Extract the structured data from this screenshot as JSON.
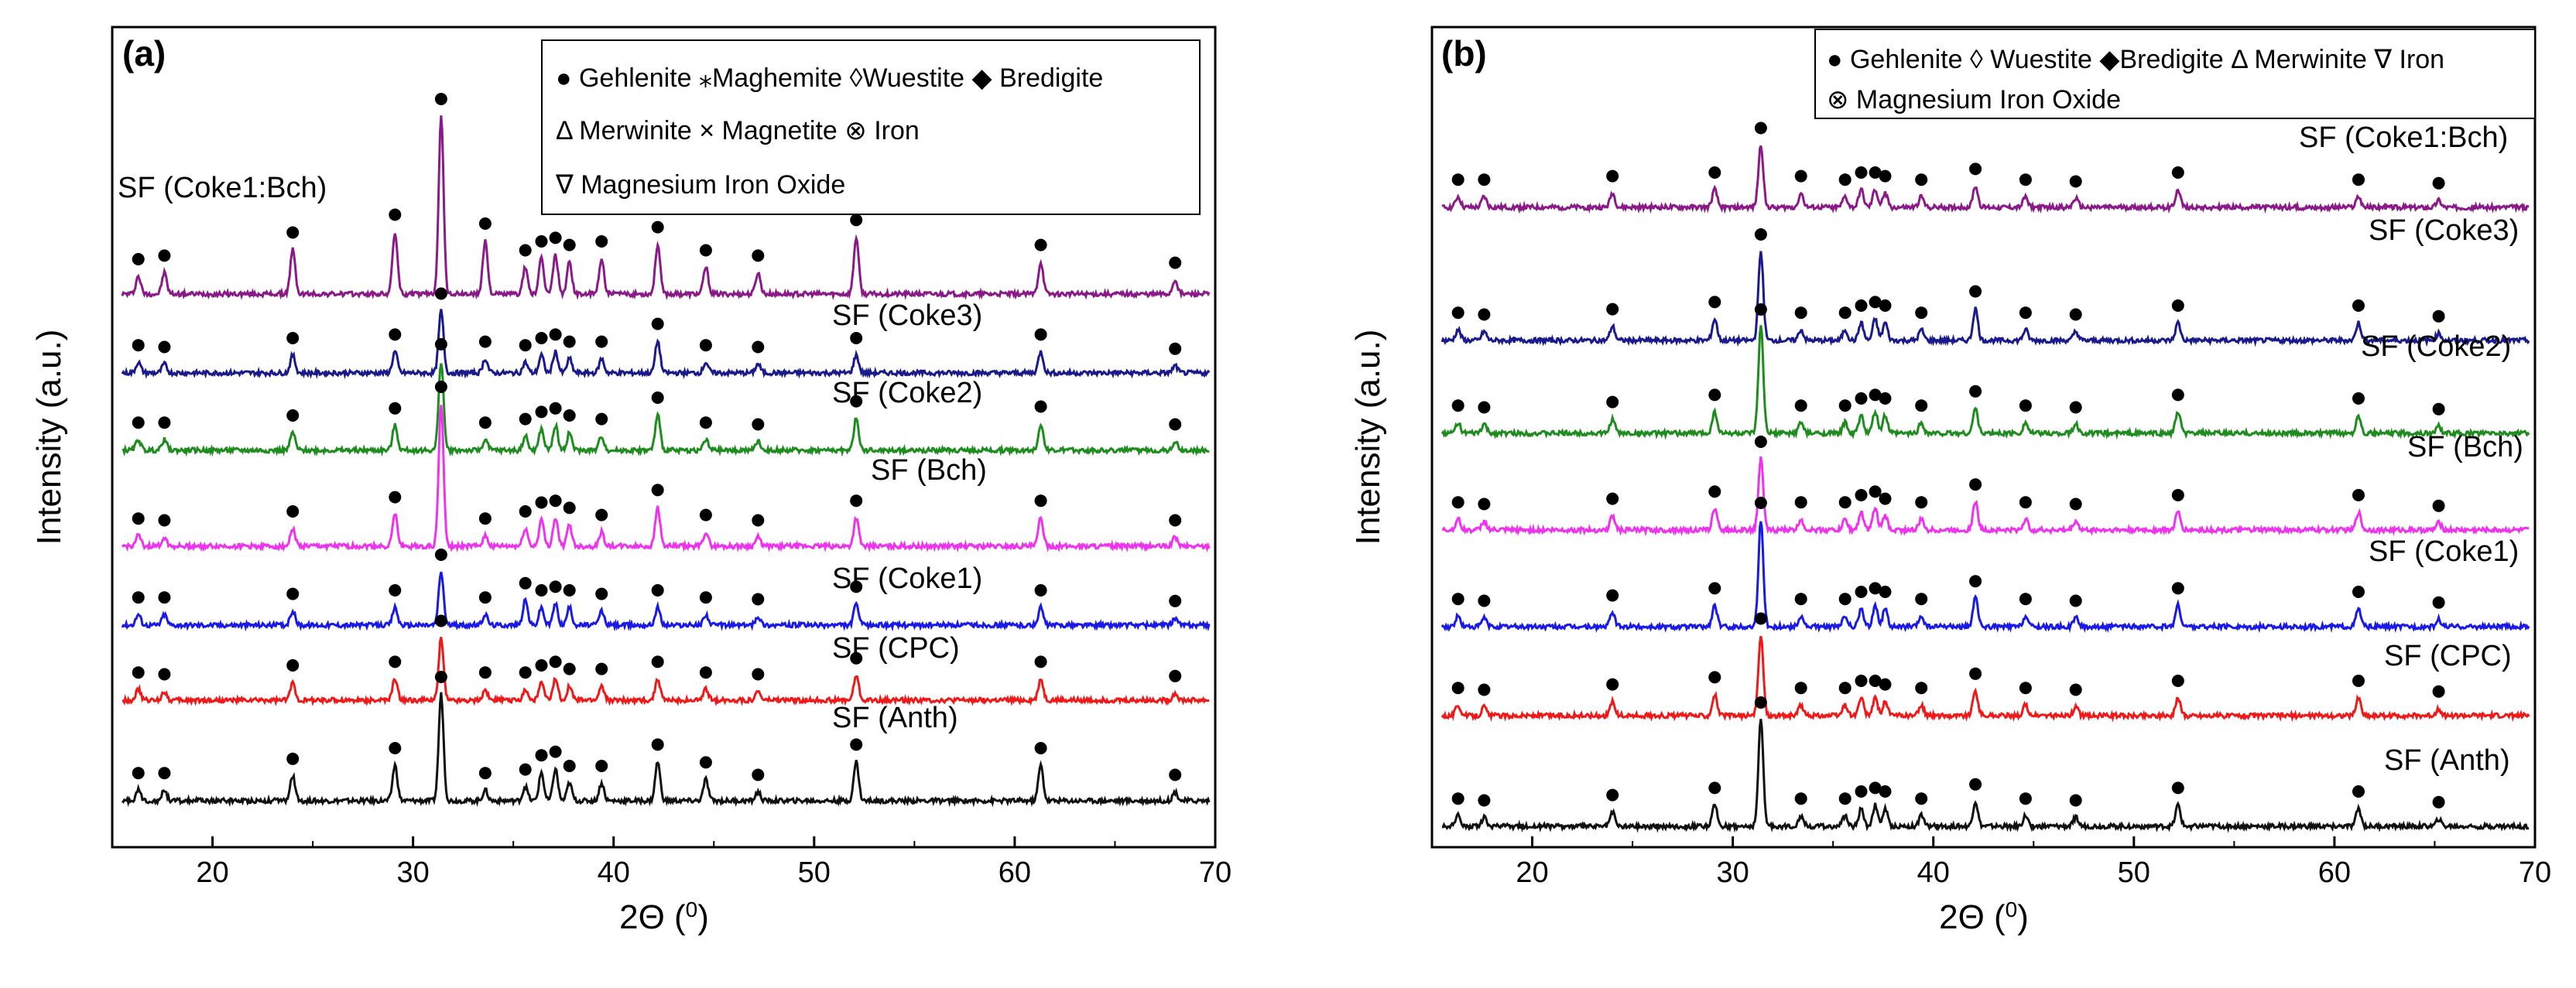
{
  "chart_data": [
    {
      "type": "line",
      "panel": "(a)",
      "xlabel": "2Θ (0)",
      "xlabel_main": "2Θ (",
      "xlabel_sup": "0",
      "xlabel_end": ")",
      "ylabel": "Intensity (a.u.)",
      "xlim": [
        15,
        70
      ],
      "xticks": [
        "20",
        "30",
        "40",
        "50",
        "60",
        "70"
      ],
      "xtick_values": [
        20,
        30,
        40,
        50,
        60,
        70
      ],
      "grid": false,
      "legend_position": "top-right",
      "legend_lines": [
        "● Gehlenite ⁎Maghemite ◊Wuestite ◆ Bredigite",
        "Δ Merwinite × Magnetite ⊗ Iron",
        "∇ Magnesium Iron Oxide"
      ],
      "main_peaks_2theta": [
        16.3,
        17.6,
        24.0,
        29.1,
        31.4,
        33.6,
        35.6,
        36.4,
        37.1,
        37.8,
        39.4,
        42.2,
        44.6,
        47.2,
        52.1,
        61.3,
        68.0
      ],
      "series": [
        {
          "name": "SF (Coke1:Bch)",
          "color": "#8B1A89",
          "peak_heights": [
            0.1,
            0.12,
            0.25,
            0.35,
            1.0,
            0.3,
            0.15,
            0.2,
            0.22,
            0.18,
            0.2,
            0.28,
            0.15,
            0.12,
            0.32,
            0.18,
            0.08
          ]
        },
        {
          "name": "SF (Coke3)",
          "color": "#1A1A8C",
          "peak_heights": [
            0.06,
            0.05,
            0.1,
            0.12,
            0.35,
            0.08,
            0.06,
            0.1,
            0.12,
            0.08,
            0.08,
            0.18,
            0.06,
            0.05,
            0.1,
            0.12,
            0.04
          ]
        },
        {
          "name": "SF (Coke2)",
          "color": "#1E8C1E",
          "peak_heights": [
            0.06,
            0.06,
            0.1,
            0.14,
            0.5,
            0.06,
            0.08,
            0.12,
            0.14,
            0.1,
            0.08,
            0.2,
            0.06,
            0.05,
            0.18,
            0.15,
            0.05
          ]
        },
        {
          "name": "SF (Bch)",
          "color": "#EE33EE",
          "peak_heights": [
            0.06,
            0.05,
            0.1,
            0.18,
            0.8,
            0.06,
            0.1,
            0.15,
            0.16,
            0.12,
            0.08,
            0.22,
            0.08,
            0.05,
            0.16,
            0.16,
            0.05
          ]
        },
        {
          "name": "SF (Coke1)",
          "color": "#1A1AE6",
          "peak_heights": [
            0.06,
            0.06,
            0.08,
            0.1,
            0.3,
            0.06,
            0.14,
            0.1,
            0.12,
            0.1,
            0.08,
            0.1,
            0.06,
            0.05,
            0.12,
            0.1,
            0.04
          ]
        },
        {
          "name": "SF (CPC)",
          "color": "#EE1A1A",
          "peak_heights": [
            0.06,
            0.05,
            0.1,
            0.12,
            0.35,
            0.06,
            0.06,
            0.1,
            0.12,
            0.08,
            0.08,
            0.12,
            0.06,
            0.05,
            0.14,
            0.12,
            0.04
          ]
        },
        {
          "name": "SF (Anth)",
          "color": "#111111",
          "peak_heights": [
            0.06,
            0.06,
            0.14,
            0.2,
            0.6,
            0.06,
            0.08,
            0.16,
            0.18,
            0.1,
            0.1,
            0.22,
            0.12,
            0.05,
            0.22,
            0.2,
            0.05
          ]
        }
      ]
    },
    {
      "type": "line",
      "panel": "(b)",
      "xlabel": "2Θ (0)",
      "xlabel_main": "2Θ (",
      "xlabel_sup": "0",
      "xlabel_end": ")",
      "ylabel": "Intensity (a.u.)",
      "xlim": [
        15,
        70
      ],
      "xticks": [
        "20",
        "30",
        "40",
        "50",
        "60",
        "70"
      ],
      "xtick_values": [
        20,
        30,
        40,
        50,
        60,
        70
      ],
      "grid": false,
      "legend_position": "top-right",
      "legend_lines": [
        "● Gehlenite ◊ Wuestite ◆Bredigite Δ Merwinite ∇ Iron",
        "⊗ Magnesium Iron Oxide"
      ],
      "main_peaks_2theta": [
        16.3,
        17.6,
        24.0,
        29.1,
        31.4,
        33.4,
        35.6,
        36.4,
        37.1,
        37.6,
        39.4,
        42.1,
        44.6,
        47.1,
        52.2,
        61.2,
        65.2
      ],
      "series": [
        {
          "name": "SF (Coke1:Bch)",
          "color": "#8B1A89",
          "peak_heights": [
            0.06,
            0.06,
            0.08,
            0.1,
            0.35,
            0.08,
            0.06,
            0.1,
            0.1,
            0.08,
            0.06,
            0.12,
            0.06,
            0.05,
            0.1,
            0.06,
            0.04
          ]
        },
        {
          "name": "SF (Coke3)",
          "color": "#1A1A8C",
          "peak_heights": [
            0.06,
            0.05,
            0.08,
            0.12,
            0.5,
            0.06,
            0.06,
            0.1,
            0.12,
            0.1,
            0.06,
            0.18,
            0.06,
            0.05,
            0.1,
            0.1,
            0.04
          ]
        },
        {
          "name": "SF (Coke2)",
          "color": "#1E8C1E",
          "peak_heights": [
            0.06,
            0.05,
            0.08,
            0.12,
            0.6,
            0.06,
            0.06,
            0.1,
            0.12,
            0.1,
            0.06,
            0.14,
            0.06,
            0.05,
            0.12,
            0.1,
            0.04
          ]
        },
        {
          "name": "SF (Bch)",
          "color": "#EE33EE",
          "peak_heights": [
            0.06,
            0.05,
            0.08,
            0.12,
            0.4,
            0.06,
            0.06,
            0.1,
            0.12,
            0.08,
            0.06,
            0.16,
            0.06,
            0.05,
            0.1,
            0.1,
            0.04
          ]
        },
        {
          "name": "SF (Coke1)",
          "color": "#1A1AE6",
          "peak_heights": [
            0.06,
            0.05,
            0.08,
            0.12,
            0.6,
            0.06,
            0.06,
            0.1,
            0.12,
            0.1,
            0.06,
            0.16,
            0.06,
            0.05,
            0.12,
            0.1,
            0.04
          ]
        },
        {
          "name": "SF (CPC)",
          "color": "#EE1A1A",
          "peak_heights": [
            0.06,
            0.05,
            0.08,
            0.12,
            0.45,
            0.06,
            0.06,
            0.1,
            0.1,
            0.08,
            0.06,
            0.14,
            0.06,
            0.05,
            0.1,
            0.1,
            0.04
          ]
        },
        {
          "name": "SF (Anth)",
          "color": "#111111",
          "peak_heights": [
            0.06,
            0.05,
            0.08,
            0.12,
            0.6,
            0.06,
            0.06,
            0.1,
            0.12,
            0.1,
            0.06,
            0.14,
            0.06,
            0.05,
            0.12,
            0.1,
            0.04
          ]
        }
      ]
    }
  ]
}
